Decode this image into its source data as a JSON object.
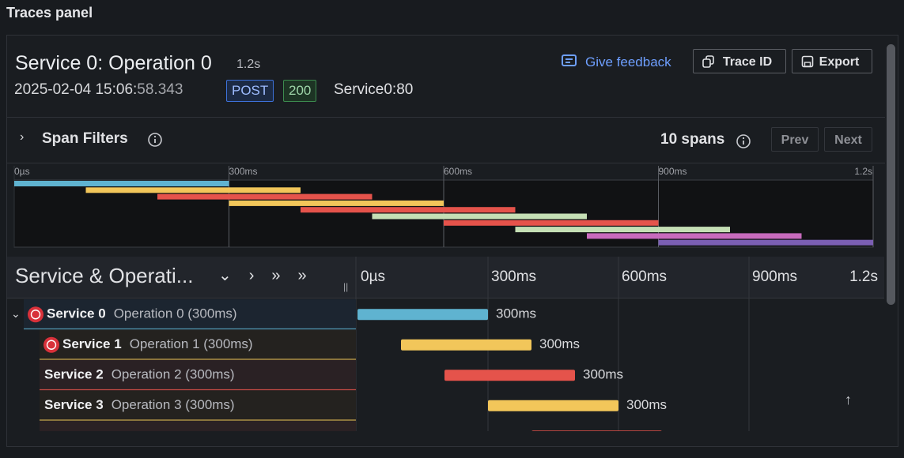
{
  "panel_title": "Traces panel",
  "header": {
    "title": "Service 0: Operation 0",
    "duration": "1.2s",
    "date_time": "2025-02-04 15:06:",
    "seconds": "58.343",
    "method": "POST",
    "status": "200",
    "address": "Service0:80",
    "feedback": "Give feedback",
    "trace_id_button": "Trace ID",
    "export_button": "Export"
  },
  "filters": {
    "label": "Span Filters",
    "span_count": "10 spans",
    "prev": "Prev",
    "next": "Next"
  },
  "timeline": {
    "column_header": "Service & Operati...",
    "xlim": [
      0,
      1200
    ],
    "ticks": [
      {
        "value": 0,
        "label": "0µs"
      },
      {
        "value": 300,
        "label": "300ms"
      },
      {
        "value": 600,
        "label": "600ms"
      },
      {
        "value": 900,
        "label": "900ms"
      },
      {
        "value": 1200,
        "label": "1.2s"
      }
    ]
  },
  "spans": [
    {
      "service": "Service 0",
      "operation": "Operation 0 (300ms)",
      "duration_label": "300ms",
      "start": 0,
      "duration": 300,
      "color": "#5fb3d0",
      "error": true
    },
    {
      "service": "Service 1",
      "operation": "Operation 1 (300ms)",
      "duration_label": "300ms",
      "start": 100,
      "duration": 300,
      "color": "#f2c65a",
      "error": true
    },
    {
      "service": "Service 2",
      "operation": "Operation 2 (300ms)",
      "duration_label": "300ms",
      "start": 200,
      "duration": 300,
      "color": "#e5534b",
      "error": false
    },
    {
      "service": "Service 3",
      "operation": "Operation 3 (300ms)",
      "duration_label": "300ms",
      "start": 300,
      "duration": 300,
      "color": "#f2c65a",
      "error": false
    },
    {
      "start": 400,
      "duration": 300,
      "color": "#e5534b"
    },
    {
      "start": 500,
      "duration": 300,
      "color": "#c5dfb5"
    },
    {
      "start": 600,
      "duration": 300,
      "color": "#e5534b"
    },
    {
      "start": 700,
      "duration": 300,
      "color": "#c5dfb5"
    },
    {
      "start": 800,
      "duration": 300,
      "color": "#c86bbd"
    },
    {
      "start": 900,
      "duration": 300,
      "color": "#7b5fb3"
    }
  ]
}
